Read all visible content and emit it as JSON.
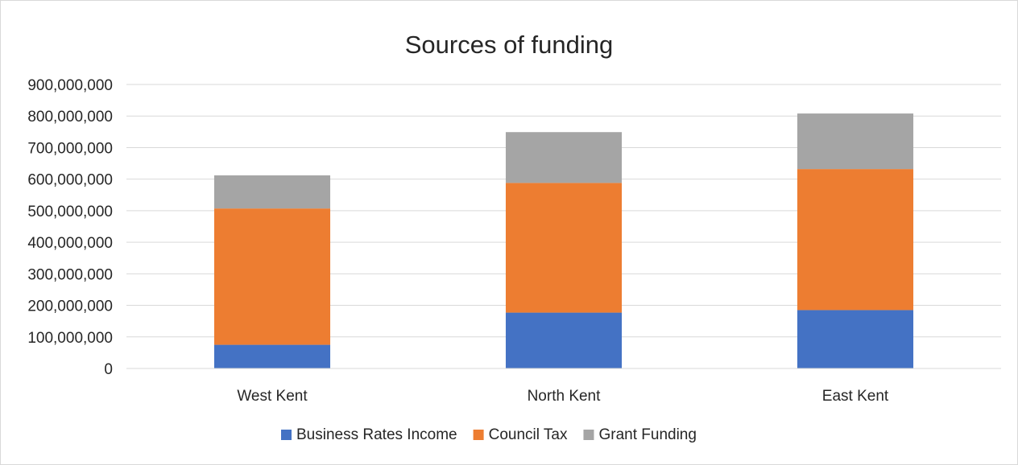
{
  "chart_data": {
    "type": "bar",
    "stacked": true,
    "title": "Sources of funding",
    "categories": [
      "West Kent",
      "North Kent",
      "East Kent"
    ],
    "series": [
      {
        "name": "Business Rates Income",
        "color": "#4472c4",
        "values": [
          75000000,
          177000000,
          185000000
        ]
      },
      {
        "name": "Council Tax",
        "color": "#ed7d31",
        "values": [
          432000000,
          411000000,
          447000000
        ]
      },
      {
        "name": "Grant Funding",
        "color": "#a5a5a5",
        "values": [
          105000000,
          161000000,
          176000000
        ]
      }
    ],
    "y_ticks": [
      "0",
      "100,000,000",
      "200,000,000",
      "300,000,000",
      "400,000,000",
      "500,000,000",
      "600,000,000",
      "700,000,000",
      "800,000,000",
      "900,000,000"
    ],
    "ylim": [
      0,
      900000000
    ],
    "grid": true,
    "legend_position": "bottom",
    "gridline_color": "#d9d9d9"
  }
}
